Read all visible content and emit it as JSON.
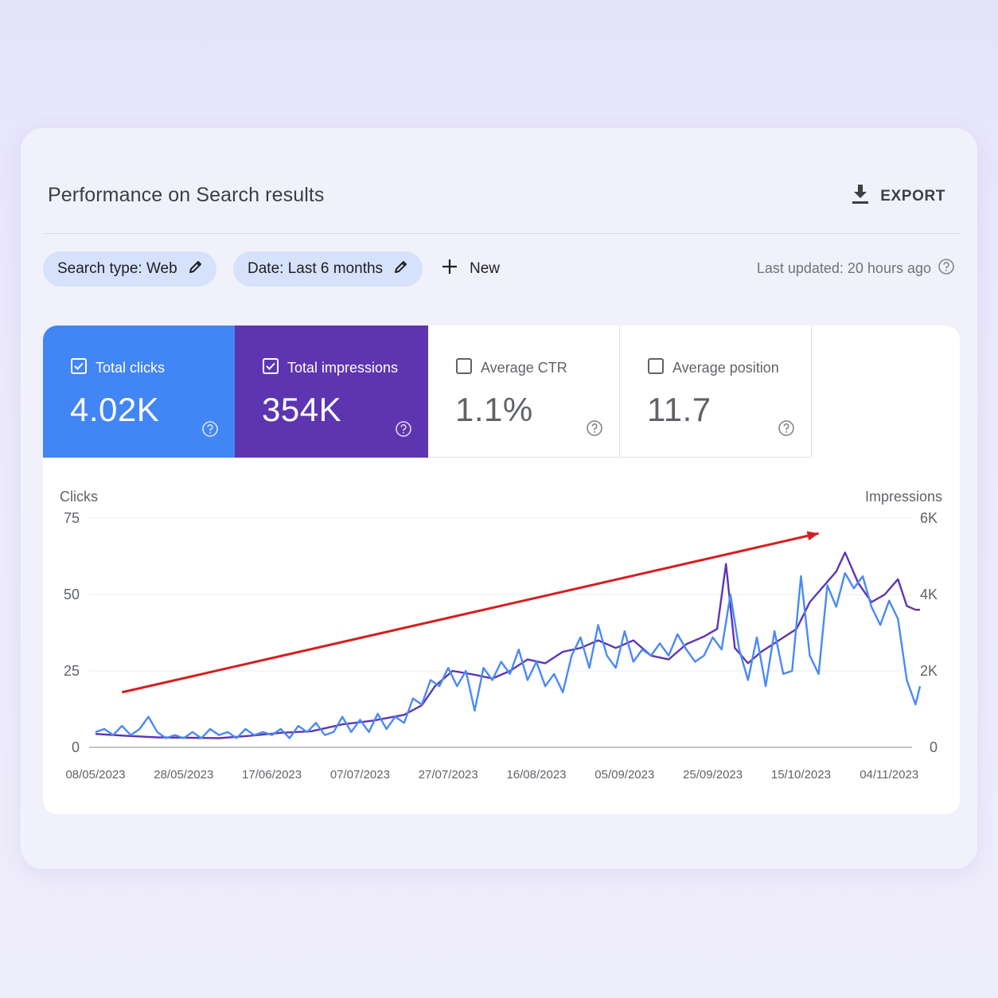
{
  "header": {
    "title": "Performance on Search results",
    "export_label": "EXPORT"
  },
  "filters": {
    "search_type": "Search type: Web",
    "date": "Date: Last 6 months",
    "new_label": "New",
    "last_updated": "Last updated: 20 hours ago"
  },
  "metrics": [
    {
      "label": "Total clicks",
      "value": "4.02K",
      "checked": true,
      "color": "#4285f4"
    },
    {
      "label": "Total impressions",
      "value": "354K",
      "checked": true,
      "color": "#5e35b1"
    },
    {
      "label": "Average CTR",
      "value": "1.1%",
      "checked": false
    },
    {
      "label": "Average position",
      "value": "11.7",
      "checked": false
    }
  ],
  "colors": {
    "clicks": "#4a8af4",
    "impressions": "#5e35b1",
    "trend_arrow": "#d51f1f"
  },
  "chart_data": {
    "type": "line",
    "left_axis": {
      "label": "Clicks",
      "ticks": [
        "0",
        "25",
        "50",
        "75"
      ],
      "range": [
        0,
        75
      ]
    },
    "right_axis": {
      "label": "Impressions",
      "ticks": [
        "0",
        "2K",
        "4K",
        "6K"
      ],
      "range": [
        0,
        6000
      ]
    },
    "x_ticks": [
      "08/05/2023",
      "28/05/2023",
      "17/06/2023",
      "07/07/2023",
      "27/07/2023",
      "16/08/2023",
      "05/09/2023",
      "25/09/2023",
      "15/10/2023",
      "04/11/2023"
    ],
    "x_range": [
      "2023-05-08",
      "2023-11-11"
    ],
    "grid": true,
    "series": [
      {
        "name": "Clicks",
        "axis": "left",
        "points": [
          [
            "2023-05-08",
            5
          ],
          [
            "2023-05-10",
            6
          ],
          [
            "2023-05-12",
            4
          ],
          [
            "2023-05-14",
            7
          ],
          [
            "2023-05-16",
            4
          ],
          [
            "2023-05-18",
            6
          ],
          [
            "2023-05-20",
            10
          ],
          [
            "2023-05-22",
            5
          ],
          [
            "2023-05-24",
            3
          ],
          [
            "2023-05-26",
            4
          ],
          [
            "2023-05-28",
            3
          ],
          [
            "2023-05-30",
            5
          ],
          [
            "2023-06-01",
            3
          ],
          [
            "2023-06-03",
            6
          ],
          [
            "2023-06-05",
            4
          ],
          [
            "2023-06-07",
            5
          ],
          [
            "2023-06-09",
            3
          ],
          [
            "2023-06-11",
            6
          ],
          [
            "2023-06-13",
            4
          ],
          [
            "2023-06-15",
            5
          ],
          [
            "2023-06-17",
            4
          ],
          [
            "2023-06-19",
            6
          ],
          [
            "2023-06-21",
            3
          ],
          [
            "2023-06-23",
            7
          ],
          [
            "2023-06-25",
            5
          ],
          [
            "2023-06-27",
            8
          ],
          [
            "2023-06-29",
            4
          ],
          [
            "2023-07-01",
            5
          ],
          [
            "2023-07-03",
            10
          ],
          [
            "2023-07-05",
            5
          ],
          [
            "2023-07-07",
            9
          ],
          [
            "2023-07-09",
            5
          ],
          [
            "2023-07-11",
            11
          ],
          [
            "2023-07-13",
            6
          ],
          [
            "2023-07-15",
            10
          ],
          [
            "2023-07-17",
            8
          ],
          [
            "2023-07-19",
            16
          ],
          [
            "2023-07-21",
            14
          ],
          [
            "2023-07-23",
            22
          ],
          [
            "2023-07-25",
            20
          ],
          [
            "2023-07-27",
            26
          ],
          [
            "2023-07-29",
            20
          ],
          [
            "2023-07-31",
            25
          ],
          [
            "2023-08-02",
            12
          ],
          [
            "2023-08-04",
            26
          ],
          [
            "2023-08-06",
            22
          ],
          [
            "2023-08-08",
            28
          ],
          [
            "2023-08-10",
            24
          ],
          [
            "2023-08-12",
            32
          ],
          [
            "2023-08-14",
            22
          ],
          [
            "2023-08-16",
            28
          ],
          [
            "2023-08-18",
            20
          ],
          [
            "2023-08-20",
            24
          ],
          [
            "2023-08-22",
            18
          ],
          [
            "2023-08-24",
            30
          ],
          [
            "2023-08-26",
            36
          ],
          [
            "2023-08-28",
            26
          ],
          [
            "2023-08-30",
            40
          ],
          [
            "2023-09-01",
            30
          ],
          [
            "2023-09-03",
            26
          ],
          [
            "2023-09-05",
            38
          ],
          [
            "2023-09-07",
            28
          ],
          [
            "2023-09-09",
            32
          ],
          [
            "2023-09-11",
            30
          ],
          [
            "2023-09-13",
            34
          ],
          [
            "2023-09-15",
            30
          ],
          [
            "2023-09-17",
            37
          ],
          [
            "2023-09-19",
            32
          ],
          [
            "2023-09-21",
            28
          ],
          [
            "2023-09-23",
            30
          ],
          [
            "2023-09-25",
            36
          ],
          [
            "2023-09-27",
            32
          ],
          [
            "2023-09-29",
            50
          ],
          [
            "2023-10-01",
            32
          ],
          [
            "2023-10-03",
            22
          ],
          [
            "2023-10-05",
            36
          ],
          [
            "2023-10-07",
            20
          ],
          [
            "2023-10-09",
            38
          ],
          [
            "2023-10-11",
            24
          ],
          [
            "2023-10-13",
            25
          ],
          [
            "2023-10-15",
            56
          ],
          [
            "2023-10-17",
            30
          ],
          [
            "2023-10-19",
            24
          ],
          [
            "2023-10-21",
            53
          ],
          [
            "2023-10-23",
            46
          ],
          [
            "2023-10-25",
            57
          ],
          [
            "2023-10-27",
            52
          ],
          [
            "2023-10-29",
            56
          ],
          [
            "2023-10-31",
            46
          ],
          [
            "2023-11-02",
            40
          ],
          [
            "2023-11-04",
            48
          ],
          [
            "2023-11-06",
            42
          ],
          [
            "2023-11-08",
            22
          ],
          [
            "2023-11-10",
            14
          ],
          [
            "2023-11-11",
            20
          ]
        ]
      },
      {
        "name": "Impressions",
        "axis": "right",
        "points": [
          [
            "2023-05-08",
            350
          ],
          [
            "2023-05-15",
            300
          ],
          [
            "2023-05-22",
            260
          ],
          [
            "2023-05-29",
            250
          ],
          [
            "2023-06-05",
            240
          ],
          [
            "2023-06-12",
            300
          ],
          [
            "2023-06-19",
            380
          ],
          [
            "2023-06-26",
            420
          ],
          [
            "2023-07-03",
            600
          ],
          [
            "2023-07-10",
            700
          ],
          [
            "2023-07-17",
            850
          ],
          [
            "2023-07-21",
            1100
          ],
          [
            "2023-07-24",
            1600
          ],
          [
            "2023-07-28",
            2000
          ],
          [
            "2023-08-02",
            1900
          ],
          [
            "2023-08-06",
            1800
          ],
          [
            "2023-08-10",
            2000
          ],
          [
            "2023-08-14",
            2300
          ],
          [
            "2023-08-18",
            2200
          ],
          [
            "2023-08-22",
            2500
          ],
          [
            "2023-08-26",
            2600
          ],
          [
            "2023-08-30",
            2800
          ],
          [
            "2023-09-03",
            2600
          ],
          [
            "2023-09-07",
            2800
          ],
          [
            "2023-09-11",
            2400
          ],
          [
            "2023-09-15",
            2300
          ],
          [
            "2023-09-19",
            2700
          ],
          [
            "2023-09-23",
            2900
          ],
          [
            "2023-09-26",
            3100
          ],
          [
            "2023-09-28",
            4800
          ],
          [
            "2023-09-30",
            2600
          ],
          [
            "2023-10-03",
            2200
          ],
          [
            "2023-10-06",
            2500
          ],
          [
            "2023-10-10",
            2800
          ],
          [
            "2023-10-14",
            3100
          ],
          [
            "2023-10-17",
            3800
          ],
          [
            "2023-10-20",
            4200
          ],
          [
            "2023-10-23",
            4600
          ],
          [
            "2023-10-25",
            5100
          ],
          [
            "2023-10-28",
            4300
          ],
          [
            "2023-10-31",
            3800
          ],
          [
            "2023-11-03",
            4000
          ],
          [
            "2023-11-06",
            4400
          ],
          [
            "2023-11-08",
            3700
          ],
          [
            "2023-11-10",
            3600
          ],
          [
            "2023-11-11",
            3600
          ]
        ]
      }
    ],
    "annotation": {
      "type": "trend-arrow",
      "from": [
        "2023-05-14",
        18
      ],
      "to": [
        "2023-10-19",
        70
      ]
    }
  }
}
